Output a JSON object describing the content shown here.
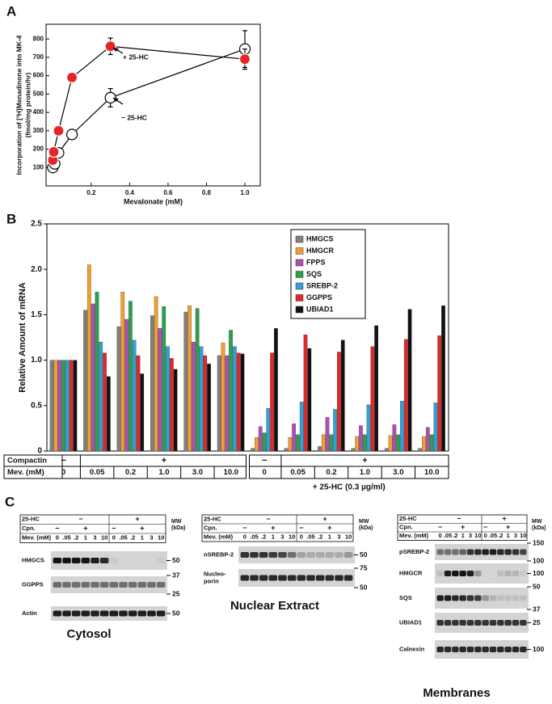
{
  "panel_labels": [
    "A",
    "B",
    "C"
  ],
  "chart_data": [
    {
      "type": "line",
      "y_label": [
        "Incorporation of [³H]Menadinone into MK-4",
        "(fmol/mg protein/hr)"
      ],
      "x_label": "Mevalonate (mM)",
      "xlim": [
        -0.035,
        1.08
      ],
      "ylim": [
        0,
        880
      ],
      "xticks": [
        0.2,
        0.4,
        0.6,
        0.8,
        {
          "value": 1,
          "label": "1.0"
        }
      ],
      "yticks": [
        100,
        200,
        300,
        400,
        500,
        600,
        700,
        800
      ],
      "series": [
        {
          "name": "− 25-HC",
          "color": "#ffffff",
          "x": [
            0,
            0.01,
            0.03,
            0.1,
            0.3,
            1.0
          ],
          "values": [
            100,
            120,
            180,
            280,
            480,
            745
          ],
          "errors": [
            0,
            0,
            0,
            0,
            50,
            100
          ]
        },
        {
          "name": "+ 25-HC",
          "color": "#e8232a",
          "x": [
            0,
            0.005,
            0.03,
            0.1,
            0.3,
            1.0
          ],
          "values": [
            140,
            185,
            300,
            590,
            760,
            690
          ],
          "errors": [
            0,
            0,
            0,
            0,
            45,
            55
          ]
        }
      ]
    },
    {
      "type": "bar",
      "y_label": "Relative Amount of mRNA",
      "ylim": [
        0,
        2.5
      ],
      "yticks": [
        0,
        0.5,
        {
          "value": 1,
          "label": "1.0"
        },
        1.5,
        {
          "value": 2,
          "label": "2.0"
        },
        2.5
      ],
      "categories": [
        "0",
        "0.05",
        "0.2",
        "1.0",
        "3.0",
        "10.0",
        "0",
        "0.05",
        "0.2",
        "1.0",
        "3.0",
        "10.0"
      ],
      "legend": "upper right",
      "series": [
        {
          "name": "HMGCS",
          "color": "#808080",
          "values": [
            1.0,
            1.55,
            1.37,
            1.49,
            1.53,
            1.05,
            0.03,
            0.03,
            0.05,
            0.03,
            0.03,
            0.03
          ]
        },
        {
          "name": "HMGCR",
          "color": "#f0a030",
          "values": [
            1.0,
            2.05,
            1.75,
            1.7,
            1.6,
            1.19,
            0.15,
            0.15,
            0.18,
            0.16,
            0.17,
            0.16
          ]
        },
        {
          "name": "FPPS",
          "color": "#b04fb0",
          "values": [
            1.0,
            1.62,
            1.45,
            1.35,
            1.2,
            1.05,
            0.27,
            0.3,
            0.37,
            0.28,
            0.29,
            0.26
          ]
        },
        {
          "name": "SQS",
          "color": "#2ca050",
          "values": [
            1.0,
            1.75,
            1.65,
            1.59,
            1.57,
            1.33,
            0.2,
            0.18,
            0.18,
            0.18,
            0.18,
            0.18
          ]
        },
        {
          "name": "SREBP-2",
          "color": "#30a0d8",
          "values": [
            1.0,
            1.2,
            1.22,
            1.15,
            1.15,
            1.15,
            0.47,
            0.54,
            0.46,
            0.51,
            0.55,
            0.53
          ]
        },
        {
          "name": "GGPPS",
          "color": "#e02828",
          "values": [
            1.0,
            1.08,
            1.05,
            1.02,
            1.05,
            1.08,
            1.08,
            1.28,
            1.09,
            1.15,
            1.23,
            1.27
          ]
        },
        {
          "name": "UBIAD1",
          "color": "#111111",
          "values": [
            1.0,
            0.82,
            0.85,
            0.9,
            0.96,
            1.07,
            1.35,
            1.13,
            1.22,
            1.38,
            1.56,
            1.6
          ]
        }
      ],
      "table": {
        "row_labels": [
          "Compactin",
          "Mev. (mM)"
        ],
        "compactin": [
          "−",
          "+",
          "−",
          "+"
        ],
        "footnote": "+ 25-HC (0.3 µg/ml)"
      }
    }
  ],
  "blot_panels": [
    {
      "title": "Cytosol",
      "row_labels": [
        "25-HC",
        "Cpn.",
        "Mev. (mM)"
      ],
      "hc": [
        "−",
        "+"
      ],
      "cpn": [
        "−",
        "+",
        "−",
        "+"
      ],
      "lanes": [
        "0",
        ".05",
        ".2",
        "1",
        "3",
        "10",
        "0",
        ".05",
        ".2",
        "1",
        "3",
        "10"
      ],
      "mw_header": [
        "MW",
        "(kDa)"
      ],
      "blots": [
        {
          "label": [
            "HMGCS"
          ],
          "mw": [
            "50"
          ]
        },
        {
          "label": [
            "GGPPS"
          ],
          "mw": [
            "37",
            "25"
          ]
        },
        {
          "label": [
            "Actin"
          ],
          "mw": [
            "50"
          ]
        }
      ]
    },
    {
      "title": "Nuclear Extract",
      "row_labels": [
        "25-HC",
        "Cpn.",
        "Mev. (mM)"
      ],
      "hc": [
        "−",
        "+"
      ],
      "cpn": [
        "−",
        "+",
        "−",
        "+"
      ],
      "lanes": [
        "0",
        ".05",
        ".2",
        "1",
        "3",
        "10",
        "0",
        ".05",
        ".2",
        "1",
        "3",
        "10"
      ],
      "mw_header": [
        "MW",
        "(kDa)"
      ],
      "blots": [
        {
          "label": [
            "nSREBP-2"
          ],
          "mw": [
            "50"
          ]
        },
        {
          "label": [
            "Nucleo-",
            "porin"
          ],
          "mw": [
            "75",
            "50"
          ]
        }
      ]
    },
    {
      "title": "Membranes",
      "row_labels": [
        "25-HC",
        "Cpn.",
        "Mev. (mM)"
      ],
      "hc": [
        "−",
        "+"
      ],
      "cpn": [
        "−",
        "+",
        "−",
        "+"
      ],
      "lanes": [
        "0",
        ".05",
        ".2",
        "1",
        "3",
        "10",
        "0",
        ".05",
        ".2",
        "1",
        "3",
        "10"
      ],
      "mw_header": [
        "MW",
        "(kDa)"
      ],
      "blots": [
        {
          "label": [
            "pSREBP-2"
          ],
          "mw": [
            "150",
            "100"
          ]
        },
        {
          "label": [
            "HMGCR"
          ],
          "mw": [
            "100"
          ]
        },
        {
          "label": [
            "SQS"
          ],
          "mw": [
            "50",
            "37"
          ]
        },
        {
          "label": [
            "UBIAD1"
          ],
          "mw": [
            "25"
          ]
        },
        {
          "label": [
            "Calnexin"
          ],
          "mw": [
            "100"
          ]
        }
      ]
    }
  ]
}
